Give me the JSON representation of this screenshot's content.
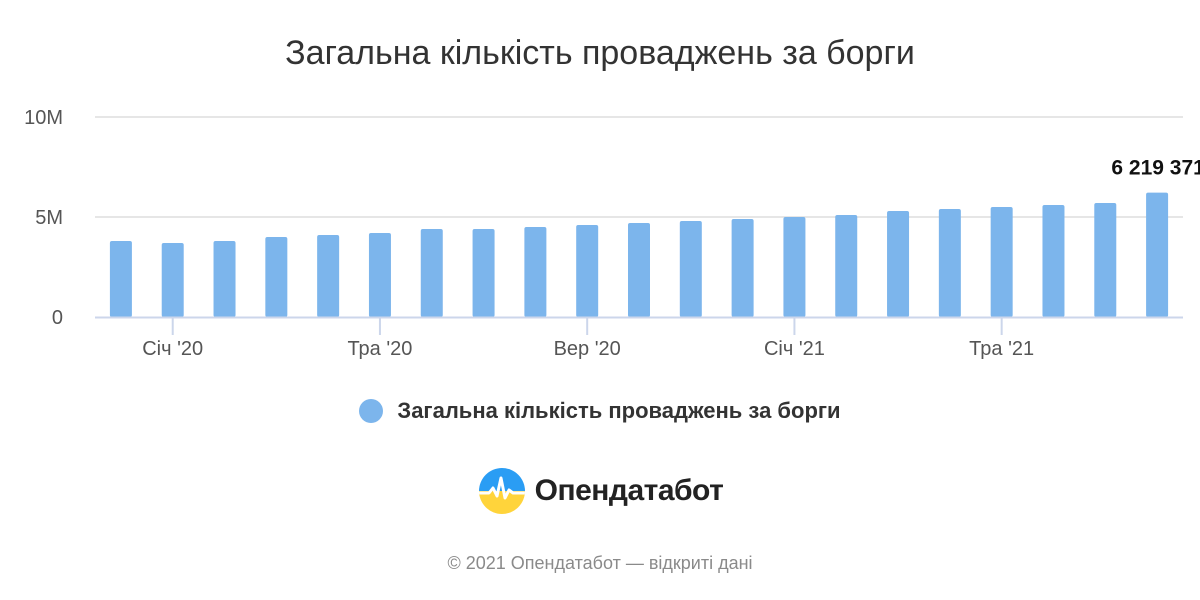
{
  "chart_data": {
    "type": "bar",
    "title": "Загальна кількість проваджень за борги",
    "series": [
      {
        "name": "Загальна кількість проваджень за борги",
        "color": "#7cb5ec",
        "values": [
          3800000,
          3700000,
          3800000,
          4000000,
          4100000,
          4200000,
          4400000,
          4400000,
          4500000,
          4600000,
          4700000,
          4800000,
          4900000,
          5000000,
          5100000,
          5300000,
          5400000,
          5500000,
          5600000,
          5700000,
          6219371
        ]
      }
    ],
    "x_start": "2019-12",
    "x_ticks": [
      "Січ '20",
      "Тра '20",
      "Вер '20",
      "Січ '21",
      "Тра '21"
    ],
    "x_tick_indices": [
      1,
      5,
      9,
      13,
      17
    ],
    "y_ticks": [
      "0",
      "5M",
      "10M"
    ],
    "y_tick_values": [
      0,
      5000000,
      10000000
    ],
    "ylim": [
      0,
      10000000
    ],
    "data_labels": [
      {
        "index": 20,
        "text": "6 219 371"
      }
    ],
    "grid": true,
    "legend_position": "bottom-center"
  },
  "legend": {
    "label": "Загальна кількість проваджень за борги",
    "color": "#7cb5ec"
  },
  "brand": {
    "name": "Опендатабот",
    "icon": "opendatabot-logo-icon"
  },
  "footer": {
    "text": "© 2021 Опендатабот — відкриті дані"
  }
}
